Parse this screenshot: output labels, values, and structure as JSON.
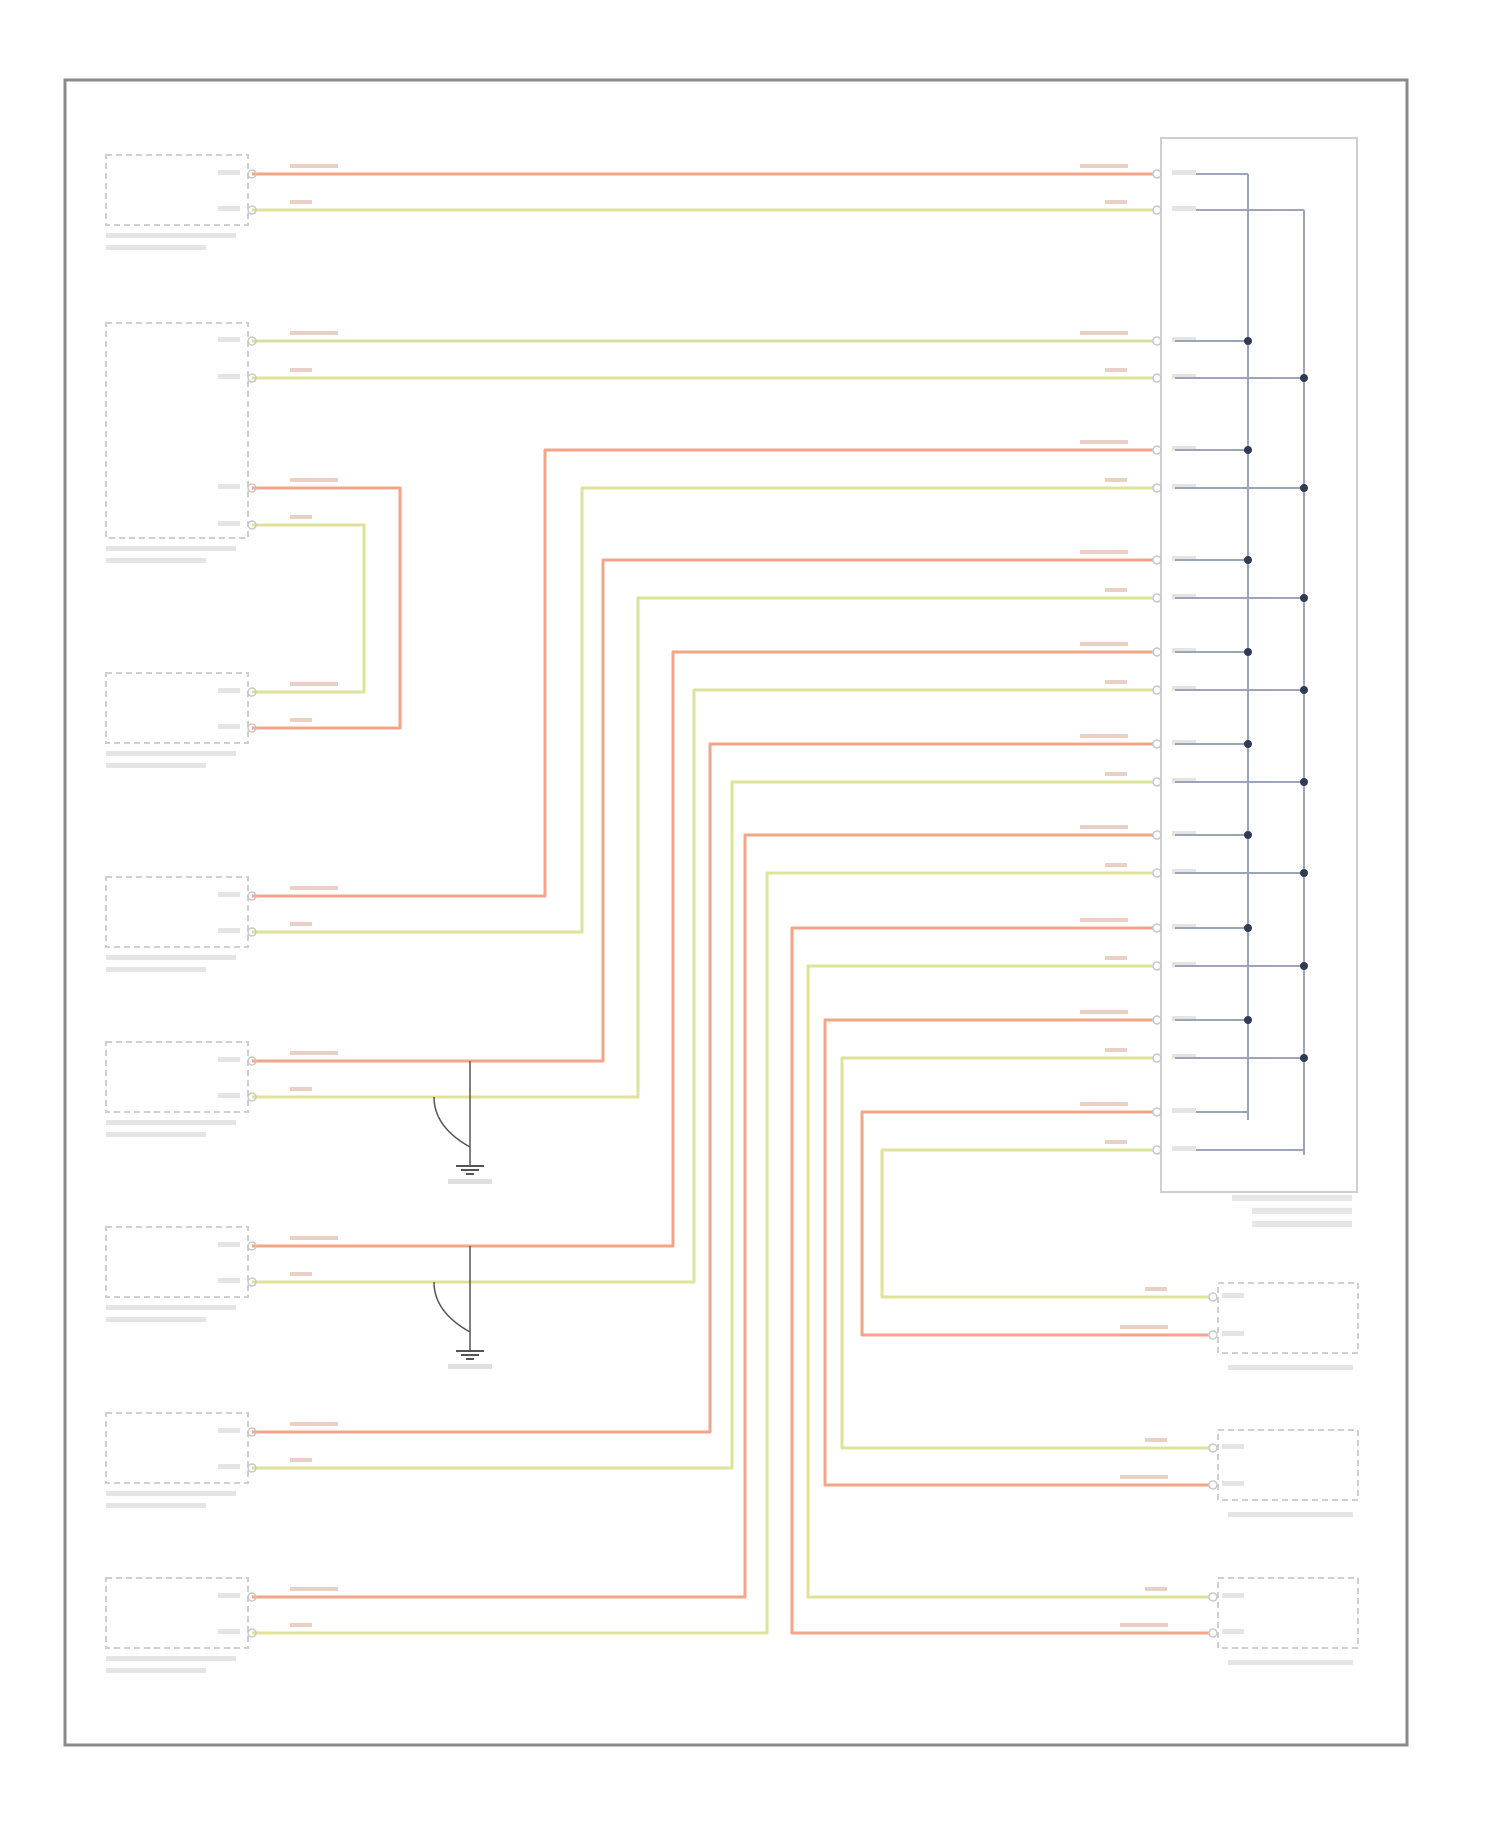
{
  "footer": "",
  "colors": {
    "wire_red": "#f3a58a",
    "wire_yellow": "#dfe39a",
    "wire_green": "#cfe0a0",
    "frame": "#8a8a8a",
    "box": "#cfcfcf",
    "bus": "#9aa6b8",
    "node": "#2f3a55"
  },
  "left_modules": [
    {
      "label": ""
    },
    {
      "label": ""
    },
    {
      "label": ""
    },
    {
      "label": ""
    },
    {
      "label": ""
    },
    {
      "label": ""
    },
    {
      "label": ""
    },
    {
      "label": ""
    }
  ],
  "right_modules": [
    {
      "label": ""
    },
    {
      "label": ""
    },
    {
      "label": ""
    }
  ],
  "connector": {
    "label": ""
  }
}
